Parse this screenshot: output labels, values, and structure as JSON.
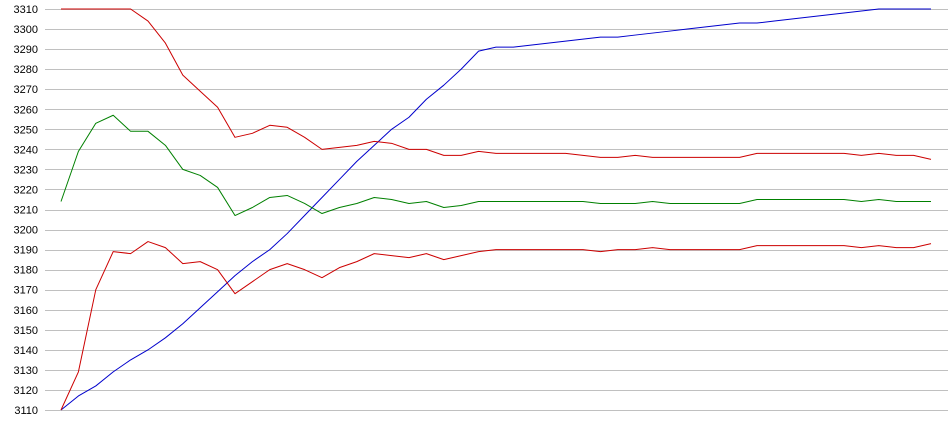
{
  "chart_data": {
    "type": "line",
    "title": "",
    "xlabel": "",
    "ylabel": "",
    "grid": true,
    "ylim": [
      3110,
      3310
    ],
    "xlim": [
      0,
      50
    ],
    "yticks": [
      3110,
      3120,
      3130,
      3140,
      3150,
      3160,
      3170,
      3180,
      3190,
      3200,
      3210,
      3220,
      3230,
      3240,
      3250,
      3260,
      3270,
      3280,
      3290,
      3300,
      3310
    ],
    "x": [
      0,
      1,
      2,
      3,
      4,
      5,
      6,
      7,
      8,
      9,
      10,
      11,
      12,
      13,
      14,
      15,
      16,
      17,
      18,
      19,
      20,
      21,
      22,
      23,
      24,
      25,
      26,
      27,
      28,
      29,
      30,
      31,
      32,
      33,
      34,
      35,
      36,
      37,
      38,
      39,
      40,
      41,
      42,
      43,
      44,
      45,
      46,
      47,
      48,
      49,
      50
    ],
    "series": [
      {
        "color": "#0000cc",
        "values": [
          3110,
          3117,
          3122,
          3129,
          3135,
          3140,
          3146,
          3153,
          3161,
          3169,
          3177,
          3184,
          3190,
          3198,
          3207,
          3216,
          3225,
          3234,
          3242,
          3250,
          3256,
          3265,
          3272,
          3280,
          3289,
          3291,
          3291,
          3292,
          3293,
          3294,
          3295,
          3296,
          3296,
          3297,
          3298,
          3299,
          3300,
          3301,
          3302,
          3303,
          3303,
          3304,
          3305,
          3306,
          3307,
          3308,
          3309,
          3310,
          3310,
          3310,
          3310
        ]
      },
      {
        "color": "#cc0000",
        "values": [
          3310,
          3310,
          3310,
          3310,
          3310,
          3304,
          3293,
          3277,
          3269,
          3261,
          3246,
          3248,
          3252,
          3251,
          3246,
          3240,
          3241,
          3242,
          3244,
          3243,
          3240,
          3240,
          3237,
          3237,
          3239,
          3238,
          3238,
          3238,
          3238,
          3238,
          3237,
          3236,
          3236,
          3237,
          3236,
          3236,
          3236,
          3236,
          3236,
          3236,
          3238,
          3238,
          3238,
          3238,
          3238,
          3238,
          3237,
          3238,
          3237,
          3237,
          3235
        ]
      },
      {
        "color": "#008000",
        "values": [
          3214,
          3239,
          3253,
          3257,
          3249,
          3249,
          3242,
          3230,
          3227,
          3221,
          3207,
          3211,
          3216,
          3217,
          3213,
          3208,
          3211,
          3213,
          3216,
          3215,
          3213,
          3214,
          3211,
          3212,
          3214,
          3214,
          3214,
          3214,
          3214,
          3214,
          3214,
          3213,
          3213,
          3213,
          3214,
          3213,
          3213,
          3213,
          3213,
          3213,
          3215,
          3215,
          3215,
          3215,
          3215,
          3215,
          3214,
          3215,
          3214,
          3214,
          3214
        ]
      },
      {
        "color": "#cc0000",
        "values": [
          3110,
          3129,
          3170,
          3189,
          3188,
          3194,
          3191,
          3183,
          3184,
          3180,
          3168,
          3174,
          3180,
          3183,
          3180,
          3176,
          3181,
          3184,
          3188,
          3187,
          3186,
          3188,
          3185,
          3187,
          3189,
          3190,
          3190,
          3190,
          3190,
          3190,
          3190,
          3189,
          3190,
          3190,
          3191,
          3190,
          3190,
          3190,
          3190,
          3190,
          3192,
          3192,
          3192,
          3192,
          3192,
          3192,
          3191,
          3192,
          3191,
          3191,
          3193
        ]
      }
    ]
  },
  "colors": {
    "grid": "#c0c0c0",
    "background": "#ffffff"
  }
}
